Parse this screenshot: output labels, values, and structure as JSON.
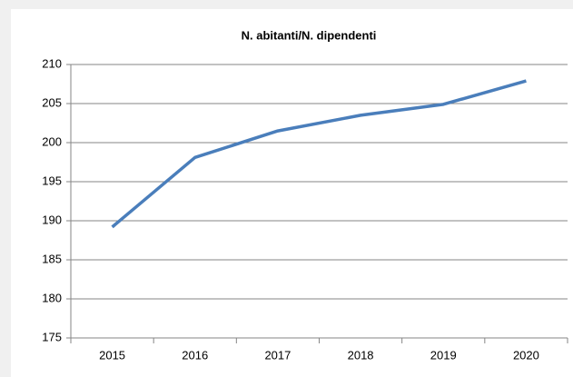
{
  "chart_data": {
    "type": "line",
    "title": "N. abitanti/N. dipendenti",
    "categories": [
      "2015",
      "2016",
      "2017",
      "2018",
      "2019",
      "2020"
    ],
    "series": [
      {
        "name": "N. abitanti/N. dipendenti",
        "color": "#4a7ebb",
        "values": [
          189.2,
          198.1,
          201.5,
          203.5,
          204.9,
          207.9
        ]
      }
    ],
    "ylim": [
      175,
      210
    ],
    "yticks": [
      175,
      180,
      185,
      190,
      195,
      200,
      205,
      210
    ],
    "grid": true
  }
}
